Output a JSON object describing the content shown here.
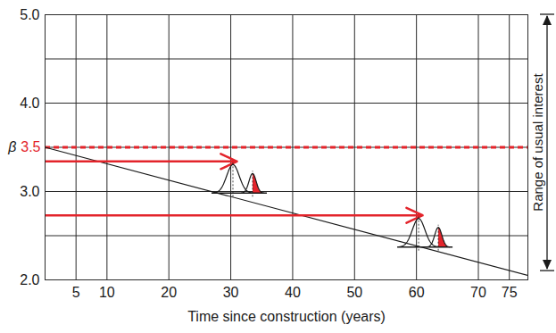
{
  "chart_data": {
    "type": "line",
    "xlabel": "Time since construction (years)",
    "x": [
      0,
      78
    ],
    "values": [
      3.5,
      2.05
    ],
    "color": "#1a1a1a",
    "xlim": [
      0,
      78
    ],
    "xticks": [
      5,
      10,
      20,
      30,
      40,
      50,
      60,
      70,
      75
    ],
    "ylim": [
      2,
      5
    ],
    "yticks": [
      {
        "value": 2,
        "label": "2.0"
      },
      {
        "value": 3,
        "label": "3.0"
      },
      {
        "value": 4,
        "label": "4.0"
      },
      {
        "value": 5,
        "label": "5.0"
      }
    ],
    "minor_yticks": [
      2.5,
      3.5,
      4.5
    ],
    "grid": true,
    "reference_line": {
      "value": 3.5,
      "label": "3.5",
      "symbol": "β",
      "color": "#e3242b",
      "line_style": "dashed"
    },
    "arrows": [
      {
        "y": 3.34,
        "x_start": 0,
        "x_end": 31,
        "color": "#e3242b"
      },
      {
        "y": 2.73,
        "x_start": 0,
        "x_end": 61,
        "color": "#e3242b"
      }
    ],
    "range_annotation": {
      "label": "Range of usual interest",
      "from": 2.1,
      "to": 5.0
    }
  }
}
